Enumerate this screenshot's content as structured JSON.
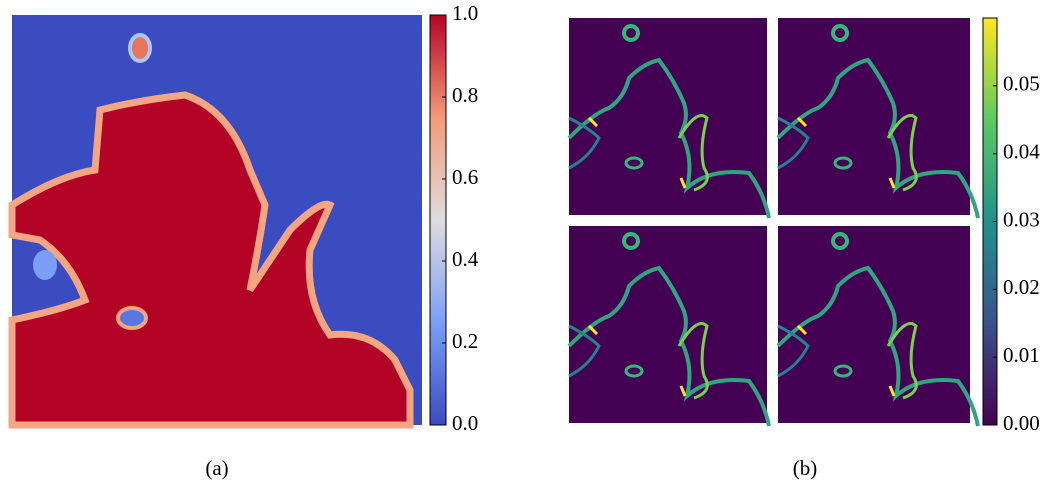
{
  "chart_data": [
    {
      "type": "heatmap",
      "caption": "(a)",
      "clim": [
        0,
        1
      ],
      "cticks": [
        {
          "value": 0,
          "label": "0.0"
        },
        {
          "value": 0.2,
          "label": "0.2"
        },
        {
          "value": 0.4,
          "label": "0.4"
        },
        {
          "value": 0.6,
          "label": "0.6"
        },
        {
          "value": 0.8,
          "label": "0.8"
        },
        {
          "value": 1,
          "label": "1.0"
        }
      ]
    },
    {
      "type": "heatmap",
      "caption": "(b)",
      "clim": [
        0,
        0.06
      ],
      "cticks": [
        {
          "value": 0,
          "label": "0.00"
        },
        0.01,
        0.02,
        0.03,
        0.04,
        0.05
      ]
    }
  ]
}
